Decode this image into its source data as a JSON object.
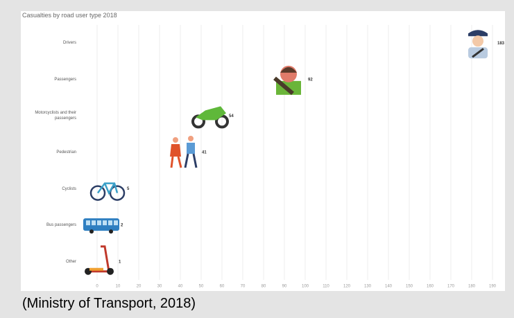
{
  "chart_data": {
    "type": "pictogram",
    "title": "Casualties by road user type 2018",
    "categories": [
      "Drivers",
      "Passengers",
      "Motorcyclists and their passengers",
      "Pedestrian",
      "Cyclists",
      "Bus passengers",
      "Other"
    ],
    "values": [
      183,
      92,
      54,
      41,
      5,
      2,
      1
    ],
    "xlim": [
      -7,
      193
    ],
    "xticks": [
      0,
      10,
      20,
      30,
      40,
      50,
      60,
      70,
      80,
      90,
      100,
      110,
      120,
      130,
      140,
      150,
      160,
      170,
      180,
      190
    ],
    "grid": true
  },
  "caption": "(Ministry of Transport, 2018)"
}
